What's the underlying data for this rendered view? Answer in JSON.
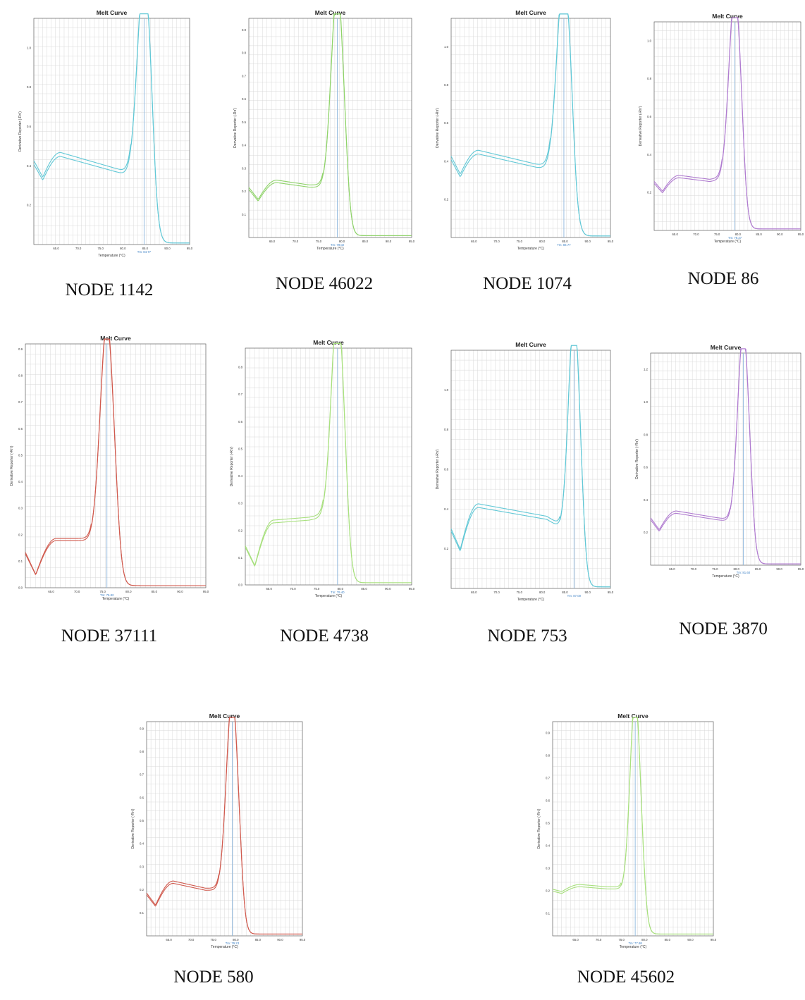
{
  "panels": [
    {
      "node": "NODE 1142",
      "tm": "Tm: 84.77",
      "color": "#62c8d6",
      "tm_value": 84.77,
      "ylim": [
        0,
        1.15
      ],
      "yticks": [
        "0.2",
        "0.4",
        "0.6",
        "0.8",
        "1.0"
      ],
      "yvals": [
        0.2,
        0.4,
        0.6,
        0.8,
        1.0
      ],
      "base": [
        0.4,
        0.32,
        0.44,
        0.36,
        0.34
      ],
      "peak": 1.15,
      "width": 1.5
    },
    {
      "node": "NODE 46022",
      "tm": "Tm: 79.02",
      "color": "#8fd36a",
      "tm_value": 79.02,
      "ylim": [
        0,
        0.95
      ],
      "yticks": [
        "0.1",
        "0.2",
        "0.3",
        "0.4",
        "0.5",
        "0.6",
        "0.7",
        "0.8",
        "0.9"
      ],
      "yvals": [
        0.1,
        0.2,
        0.3,
        0.4,
        0.5,
        0.6,
        0.7,
        0.8,
        0.9
      ],
      "base": [
        0.2,
        0.15,
        0.23,
        0.21,
        0.21
      ],
      "peak": 0.94,
      "width": 1.3
    },
    {
      "node": "NODE 1074",
      "tm": "Tm: 84.77",
      "color": "#62c8d6",
      "tm_value": 84.77,
      "ylim": [
        0,
        1.15
      ],
      "yticks": [
        "0.2",
        "0.4",
        "0.6",
        "0.8",
        "1.0"
      ],
      "yvals": [
        0.2,
        0.4,
        0.6,
        0.8,
        1.0
      ],
      "base": [
        0.4,
        0.31,
        0.43,
        0.36,
        0.35
      ],
      "peak": 1.15,
      "width": 1.5
    },
    {
      "node": "NODE 86",
      "tm": "Tm: 79.27",
      "color": "#b07cd0",
      "tm_value": 79.27,
      "ylim": [
        0,
        1.1
      ],
      "yticks": [
        "0.2",
        "0.4",
        "0.6",
        "0.8",
        "1.0"
      ],
      "yvals": [
        0.2,
        0.4,
        0.6,
        0.8,
        1.0
      ],
      "base": [
        0.24,
        0.19,
        0.27,
        0.25,
        0.26
      ],
      "peak": 1.08,
      "width": 1.4
    },
    {
      "node": "NODE 37111",
      "tm": "Tm: 75.82",
      "color": "#d05a4e",
      "tm_value": 75.82,
      "ylim": [
        0,
        0.92
      ],
      "yticks": [
        "0.0",
        "0.1",
        "0.2",
        "0.3",
        "0.4",
        "0.5",
        "0.6",
        "0.7",
        "0.8",
        "0.9"
      ],
      "yvals": [
        0,
        0.1,
        0.2,
        0.3,
        0.4,
        0.5,
        0.6,
        0.7,
        0.8,
        0.9
      ],
      "base": [
        0.12,
        0.04,
        0.17,
        0.17,
        0.17
      ],
      "peak": 0.88,
      "width": 1.3
    },
    {
      "node": "NODE 4738",
      "tm": "Tm: 79.40",
      "color": "#a8e07e",
      "tm_value": 79.4,
      "ylim": [
        0,
        0.87
      ],
      "yticks": [
        "0.0",
        "0.1",
        "0.2",
        "0.3",
        "0.4",
        "0.5",
        "0.6",
        "0.7",
        "0.8"
      ],
      "yvals": [
        0,
        0.1,
        0.2,
        0.3,
        0.4,
        0.5,
        0.6,
        0.7,
        0.8
      ],
      "base": [
        0.13,
        0.06,
        0.22,
        0.23,
        0.24
      ],
      "peak": 0.86,
      "width": 1.3
    },
    {
      "node": "NODE 753",
      "tm": "Tm: 87.00",
      "color": "#62c8d6",
      "tm_value": 87.0,
      "ylim": [
        0,
        1.2
      ],
      "yticks": [
        "0.2",
        "0.4",
        "0.6",
        "0.8",
        "1.0"
      ],
      "yvals": [
        0.2,
        0.4,
        0.6,
        0.8,
        1.0
      ],
      "base": [
        0.28,
        0.18,
        0.4,
        0.34,
        0.3
      ],
      "peak": 1.18,
      "width": 1.2
    },
    {
      "node": "NODE 3870",
      "tm": "Tm: 81.60",
      "color": "#b07cd0",
      "tm_value": 81.6,
      "ylim": [
        0,
        1.3
      ],
      "yticks": [
        "0.2",
        "0.4",
        "0.6",
        "0.8",
        "1.0",
        "1.2"
      ],
      "yvals": [
        0.2,
        0.4,
        0.6,
        0.8,
        1.0,
        1.2
      ],
      "base": [
        0.27,
        0.2,
        0.31,
        0.27,
        0.26
      ],
      "peak": 1.26,
      "width": 1.3
    },
    {
      "node": "NODE 580",
      "tm": "Tm: 79.23",
      "color": "#d05a4e",
      "tm_value": 79.23,
      "ylim": [
        0,
        0.93
      ],
      "yticks": [
        "0.1",
        "0.2",
        "0.3",
        "0.4",
        "0.5",
        "0.6",
        "0.7",
        "0.8",
        "0.9"
      ],
      "yvals": [
        0.1,
        0.2,
        0.3,
        0.4,
        0.5,
        0.6,
        0.7,
        0.8,
        0.9
      ],
      "base": [
        0.17,
        0.12,
        0.22,
        0.19,
        0.19
      ],
      "peak": 0.91,
      "width": 1.3
    },
    {
      "node": "NODE 45602",
      "tm": "Tm: 77.98",
      "color": "#a8e07e",
      "tm_value": 77.98,
      "ylim": [
        0,
        0.95
      ],
      "yticks": [
        "0.1",
        "0.2",
        "0.3",
        "0.4",
        "0.5",
        "0.6",
        "0.7",
        "0.8",
        "0.9"
      ],
      "yvals": [
        0.1,
        0.2,
        0.3,
        0.4,
        0.5,
        0.6,
        0.7,
        0.8,
        0.9
      ],
      "base": [
        0.19,
        0.18,
        0.21,
        0.2,
        0.2
      ],
      "peak": 0.93,
      "width": 1.1
    }
  ],
  "chart_data": [
    {
      "type": "line",
      "title": "Melt Curve",
      "xlabel": "Temperature (°C)",
      "ylabel": "Derivative Reporter (-Rn')",
      "xlim": [
        60,
        95
      ],
      "ylim": [
        0,
        1.15
      ],
      "series": [
        {
          "name": "",
          "tm": 84.77,
          "peak": 1.15
        }
      ]
    },
    {
      "type": "line",
      "title": "Melt Curve",
      "xlabel": "Temperature (°C)",
      "ylabel": "Derivative Reporter (-Rn')",
      "xlim": [
        60,
        95
      ],
      "ylim": [
        0,
        0.95
      ],
      "series": [
        {
          "name": "",
          "tm": 79.02,
          "peak": 0.94
        }
      ]
    },
    {
      "type": "line",
      "title": "Melt Curve",
      "xlabel": "Temperature (°C)",
      "ylabel": "Derivative Reporter (-Rn')",
      "xlim": [
        60,
        95
      ],
      "ylim": [
        0,
        1.15
      ],
      "series": [
        {
          "name": "",
          "tm": 84.77,
          "peak": 1.15
        }
      ]
    },
    {
      "type": "line",
      "title": "Melt Curve",
      "xlabel": "Temperature (°C)",
      "ylabel": "Derivative Reporter (-Rn')",
      "xlim": [
        60,
        95
      ],
      "ylim": [
        0,
        1.1
      ],
      "series": [
        {
          "name": "",
          "tm": 79.27,
          "peak": 1.08
        }
      ]
    },
    {
      "type": "line",
      "title": "Melt Curve",
      "xlabel": "Temperature (°C)",
      "ylabel": "Derivative Reporter (-Rn')",
      "xlim": [
        60,
        95
      ],
      "ylim": [
        0,
        0.92
      ],
      "series": [
        {
          "name": "",
          "tm": 75.82,
          "peak": 0.88
        }
      ]
    },
    {
      "type": "line",
      "title": "Melt Curve",
      "xlabel": "Temperature (°C)",
      "ylabel": "Derivative Reporter (-Rn')",
      "xlim": [
        60,
        95
      ],
      "ylim": [
        0,
        0.87
      ],
      "series": [
        {
          "name": "",
          "tm": 79.4,
          "peak": 0.86
        }
      ]
    },
    {
      "type": "line",
      "title": "Melt Curve",
      "xlabel": "Temperature (°C)",
      "ylabel": "Derivative Reporter (-Rn')",
      "xlim": [
        60,
        95
      ],
      "ylim": [
        0,
        1.2
      ],
      "series": [
        {
          "name": "",
          "tm": 87.0,
          "peak": 1.18
        }
      ]
    },
    {
      "type": "line",
      "title": "Melt Curve",
      "xlabel": "Temperature (°C)",
      "ylabel": "Derivative Reporter (-Rn')",
      "xlim": [
        60,
        95
      ],
      "ylim": [
        0,
        1.3
      ],
      "series": [
        {
          "name": "",
          "tm": 81.6,
          "peak": 1.26
        }
      ]
    },
    {
      "type": "line",
      "title": "Melt Curve",
      "xlabel": "Temperature (°C)",
      "ylabel": "Derivative Reporter (-Rn')",
      "xlim": [
        60,
        95
      ],
      "ylim": [
        0,
        0.93
      ],
      "series": [
        {
          "name": "",
          "tm": 79.23,
          "peak": 0.91
        }
      ]
    },
    {
      "type": "line",
      "title": "Melt Curve",
      "xlabel": "Temperature (°C)",
      "ylabel": "Derivative Reporter (-Rn')",
      "xlim": [
        60,
        95
      ],
      "ylim": [
        0,
        0.95
      ],
      "series": [
        {
          "name": "",
          "tm": 77.98,
          "peak": 0.93
        }
      ]
    }
  ],
  "chart_title": "Melt Curve",
  "x_axis_label": "Temperature (°C)",
  "y_axis_label": "Derivative Reporter (-Rn')",
  "x_ticks": [
    "65.0",
    "70.0",
    "75.0",
    "80.0",
    "85.0",
    "90.0",
    "95.0"
  ],
  "x_tick_values": [
    65,
    70,
    75,
    80,
    85,
    90,
    95
  ],
  "x_range": [
    60,
    95
  ]
}
